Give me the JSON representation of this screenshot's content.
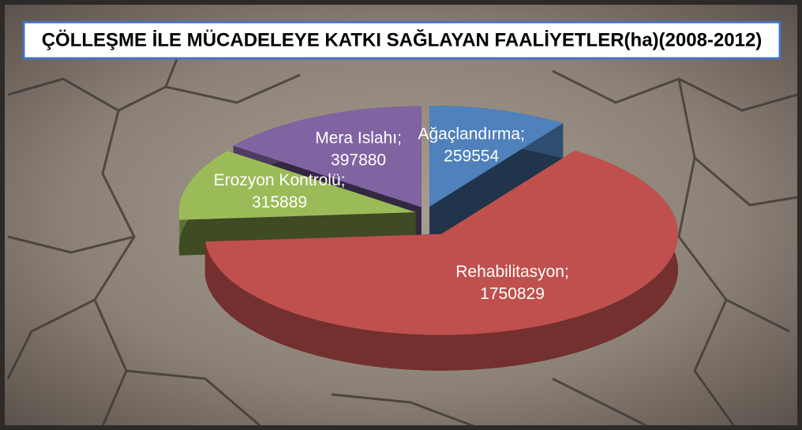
{
  "chart_data": {
    "type": "pie3d",
    "title": "ÇÖLLEŞME İLE MÜCADELEYE KATKI SAĞLAYAN FAALİYETLER(ha)(2008-2012)",
    "label_separator": ";",
    "categories": [
      "Ağaçlandırma",
      "Rehabilitasyon",
      "Erozyon Kontrolü",
      "Mera Islahı"
    ],
    "values": [
      259554,
      1750829,
      315889,
      397880
    ],
    "colors": [
      "#4f81bd",
      "#c0504d",
      "#9bbb59",
      "#8064a2"
    ]
  }
}
